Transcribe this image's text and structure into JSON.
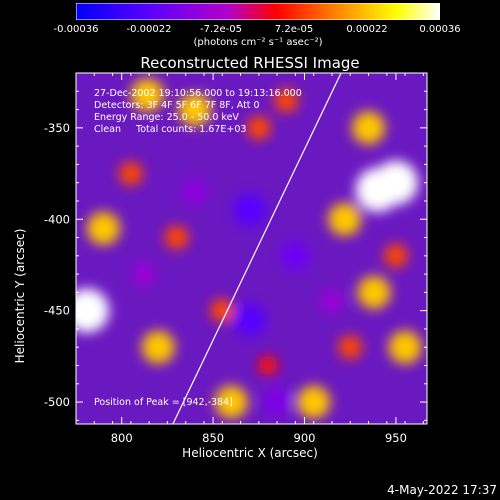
{
  "colorbar": {
    "tick_labels": [
      "-0.00036",
      "-0.00022",
      "-7.2e-05",
      "7.2e-05",
      "0.00022",
      "0.00036"
    ],
    "unit_label": "(photons cm⁻² s⁻¹ asec⁻²)",
    "range": [
      -0.00036,
      0.00036
    ],
    "colormap": [
      "#0000ff",
      "#5a00ff",
      "#b400c8",
      "#ff0000",
      "#ff7800",
      "#ffff00",
      "#ffffff"
    ]
  },
  "title": "Reconstructed RHESSI Image",
  "annotations": {
    "line1": "27-Dec-2002 19:10:56.000 to 19:13:16.000",
    "line2": "Detectors: 3F 4F 5F 6F 7F 8F, Att 0",
    "line3": "Energy Range: 25.0 - 50.0 keV",
    "line4": "Clean     Total counts: 1.67E+03",
    "peak": "Position of Peak = [942,-384]"
  },
  "footer": "4-May-2022 17:37",
  "chart_data": {
    "type": "heatmap",
    "title": "Reconstructed RHESSI Image",
    "xlabel": "Heliocentric X (arcsec)",
    "ylabel": "Heliocentric Y (arcsec)",
    "xlim": [
      775,
      967
    ],
    "ylim": [
      -512,
      -320
    ],
    "x_ticks": [
      800,
      850,
      900,
      950
    ],
    "y_ticks": [
      -350,
      -400,
      -450,
      -500
    ],
    "limb_line": [
      [
        828,
        -512
      ],
      [
        920,
        -320
      ]
    ],
    "peak_position": [
      942,
      -384
    ],
    "value_range": [
      -0.00036,
      0.00036
    ],
    "bright_regions": [
      {
        "x": 781,
        "y": -450,
        "level": 0.00036
      },
      {
        "x": 950,
        "y": -380,
        "level": 0.00036
      },
      {
        "x": 940,
        "y": -384,
        "level": 0.00036
      },
      {
        "x": 814,
        "y": -332,
        "level": 0.00022
      },
      {
        "x": 840,
        "y": -340,
        "level": 0.00022
      },
      {
        "x": 790,
        "y": -405,
        "level": 0.00022
      },
      {
        "x": 922,
        "y": -400,
        "level": 0.00022
      },
      {
        "x": 938,
        "y": -440,
        "level": 0.00022
      },
      {
        "x": 955,
        "y": -470,
        "level": 0.00022
      },
      {
        "x": 905,
        "y": -500,
        "level": 0.00022
      },
      {
        "x": 860,
        "y": -500,
        "level": 0.00022
      },
      {
        "x": 820,
        "y": -470,
        "level": 0.00022
      },
      {
        "x": 935,
        "y": -350,
        "level": 0.00022
      },
      {
        "x": 875,
        "y": -350,
        "level": 0.0001
      },
      {
        "x": 855,
        "y": -450,
        "level": 0.0001
      },
      {
        "x": 890,
        "y": -335,
        "level": 0.0001
      },
      {
        "x": 805,
        "y": -375,
        "level": 0.0001
      },
      {
        "x": 830,
        "y": -410,
        "level": 0.0001
      },
      {
        "x": 925,
        "y": -470,
        "level": 0.0001
      },
      {
        "x": 950,
        "y": -420,
        "level": 0.0001
      },
      {
        "x": 880,
        "y": -480,
        "level": 5e-05
      }
    ],
    "dark_regions": [
      {
        "x": 870,
        "y": -395,
        "level": -0.00022
      },
      {
        "x": 870,
        "y": -455,
        "level": -0.00022
      },
      {
        "x": 895,
        "y": -420,
        "level": -0.00018
      },
      {
        "x": 885,
        "y": -500,
        "level": -0.00015
      },
      {
        "x": 840,
        "y": -385,
        "level": -0.00012
      },
      {
        "x": 812,
        "y": -430,
        "level": -0.0001
      },
      {
        "x": 915,
        "y": -445,
        "level": -0.0001
      }
    ]
  }
}
